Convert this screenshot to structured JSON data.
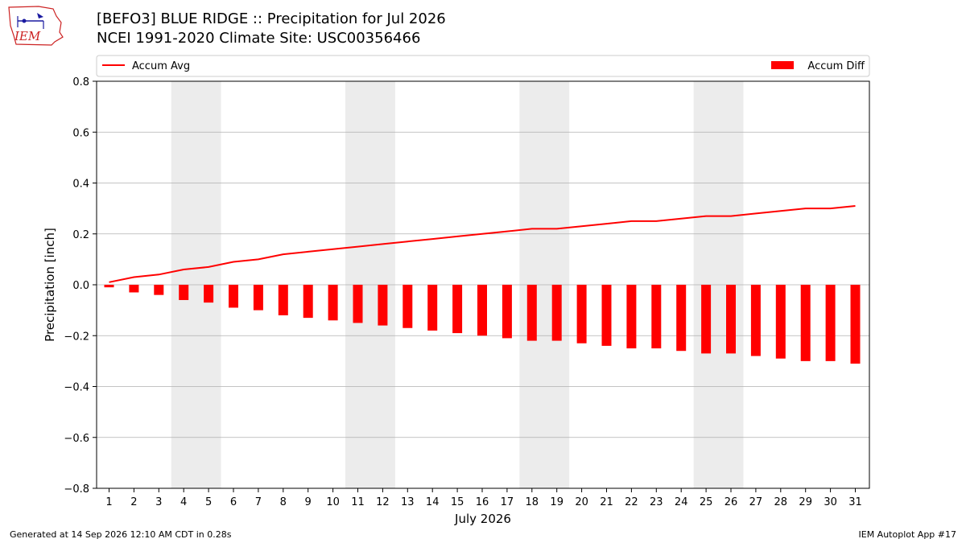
{
  "header": {
    "title": "[BEFO3] BLUE RIDGE :: Precipitation for Jul 2026",
    "subtitle": "NCEI 1991-2020 Climate Site: USC00356466",
    "logo_text": "IEM"
  },
  "footer": {
    "generated": "Generated at 14 Sep 2026 12:10 AM CDT in 0.28s",
    "app": "IEM Autoplot App #17"
  },
  "colors": {
    "series": "#ff0000",
    "weekend_band": "#ececec",
    "grid": "#b0b0b0",
    "logo_red": "#cc2222",
    "logo_blue": "#1a1aa0"
  },
  "chart_data": {
    "type": "bar",
    "title": "[BEFO3] BLUE RIDGE :: Precipitation for Jul 2026",
    "xlabel": "July 2026",
    "ylabel": "Precipitation [inch]",
    "ylim": [
      -0.8,
      0.8
    ],
    "yticks": [
      "0.8",
      "0.6",
      "0.4",
      "0.2",
      "0.0",
      "−0.2",
      "−0.4",
      "−0.6",
      "−0.8"
    ],
    "ytick_values": [
      0.8,
      0.6,
      0.4,
      0.2,
      0.0,
      -0.2,
      -0.4,
      -0.6,
      -0.8
    ],
    "grid": "horizontal",
    "legend": "top",
    "x": [
      1,
      2,
      3,
      4,
      5,
      6,
      7,
      8,
      9,
      10,
      11,
      12,
      13,
      14,
      15,
      16,
      17,
      18,
      19,
      20,
      21,
      22,
      23,
      24,
      25,
      26,
      27,
      28,
      29,
      30,
      31
    ],
    "weekend_bands": [
      [
        4,
        5
      ],
      [
        11,
        12
      ],
      [
        18,
        19
      ],
      [
        25,
        26
      ]
    ],
    "series": [
      {
        "name": "Accum Avg",
        "type": "line",
        "values": [
          0.01,
          0.03,
          0.04,
          0.06,
          0.07,
          0.09,
          0.1,
          0.12,
          0.13,
          0.14,
          0.15,
          0.16,
          0.17,
          0.18,
          0.19,
          0.2,
          0.21,
          0.22,
          0.22,
          0.23,
          0.24,
          0.25,
          0.25,
          0.26,
          0.27,
          0.27,
          0.28,
          0.29,
          0.3,
          0.3,
          0.31
        ]
      },
      {
        "name": "Accum Diff",
        "type": "bar",
        "values": [
          -0.01,
          -0.03,
          -0.04,
          -0.06,
          -0.07,
          -0.09,
          -0.1,
          -0.12,
          -0.13,
          -0.14,
          -0.15,
          -0.16,
          -0.17,
          -0.18,
          -0.19,
          -0.2,
          -0.21,
          -0.22,
          -0.22,
          -0.23,
          -0.24,
          -0.25,
          -0.25,
          -0.26,
          -0.27,
          -0.27,
          -0.28,
          -0.29,
          -0.3,
          -0.3,
          -0.31
        ]
      }
    ]
  }
}
